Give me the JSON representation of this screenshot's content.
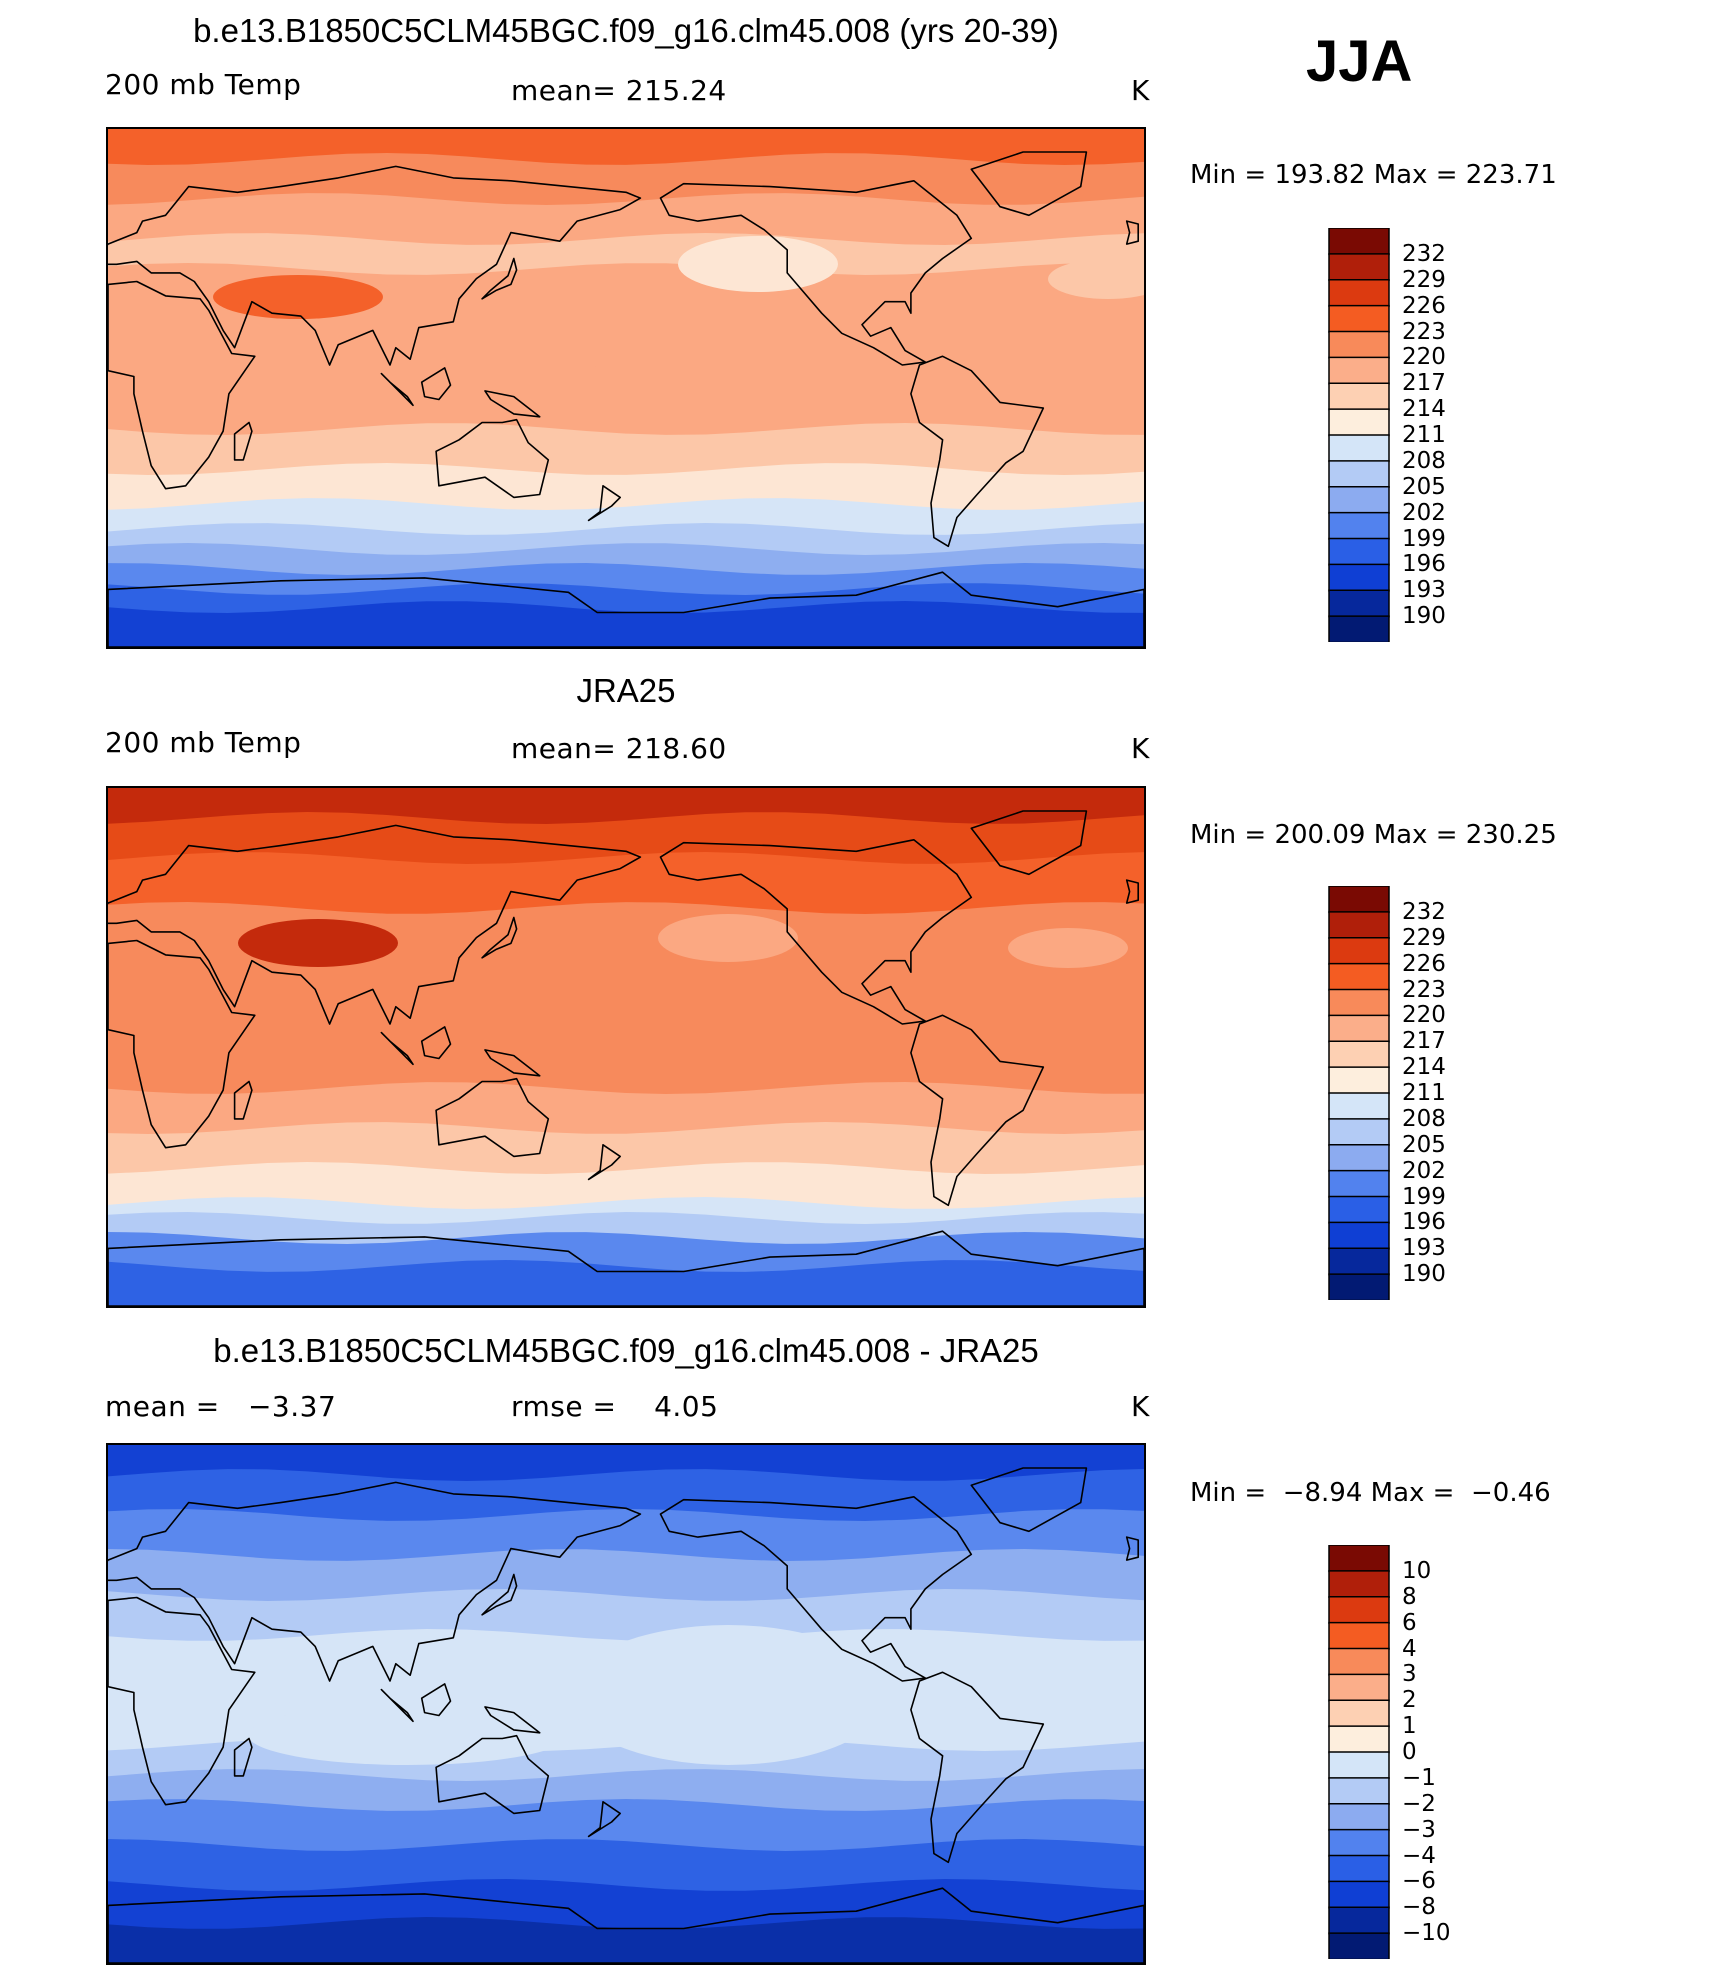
{
  "season": "JJA",
  "panels": [
    {
      "title": "b.e13.B1850C5CLM45BGC.f09_g16.clm45.008 (yrs 20-39)",
      "left_label": "200 mb Temp",
      "center_label": "mean= 215.24",
      "units": "K",
      "minmax": "Min = 193.82 Max = 223.71",
      "colorbar_levels": [
        "232",
        "229",
        "226",
        "223",
        "220",
        "217",
        "214",
        "211",
        "208",
        "205",
        "202",
        "199",
        "196",
        "193",
        "190"
      ]
    },
    {
      "title": "JRA25",
      "left_label": "200 mb Temp",
      "center_label": "mean= 218.60",
      "units": "K",
      "minmax": "Min = 200.09 Max = 230.25",
      "colorbar_levels": [
        "232",
        "229",
        "226",
        "223",
        "220",
        "217",
        "214",
        "211",
        "208",
        "205",
        "202",
        "199",
        "196",
        "193",
        "190"
      ]
    },
    {
      "title": "b.e13.B1850C5CLM45BGC.f09_g16.clm45.008 - JRA25",
      "left_label": "mean =   −3.37",
      "center_label": "rmse =    4.05",
      "units": "K",
      "minmax": "Min =  −8.94 Max =  −0.46",
      "colorbar_levels": [
        "10",
        "8",
        "6",
        "4",
        "3",
        "2",
        "1",
        "0",
        "−1",
        "−2",
        "−3",
        "−4",
        "−6",
        "−8",
        "−10"
      ]
    }
  ],
  "colorbar_colors": [
    "#7a0a03",
    "#b01f0a",
    "#dc3a10",
    "#f45c22",
    "#f88a5a",
    "#fbae8a",
    "#fdd0b3",
    "#fdeedd",
    "#d4e5f8",
    "#b3cbf5",
    "#8cabf0",
    "#5282ee",
    "#2a5fe6",
    "#0f3fd4",
    "#06289c",
    "#021a73"
  ],
  "map_palettes": {
    "model": [
      "#f4612a",
      "#f78a5c",
      "#fba882",
      "#fcc7a8",
      "#fde6d4",
      "#d6e5f7",
      "#b3cbf5",
      "#8eaef0",
      "#5a88ee",
      "#2e62e4",
      "#1341d3"
    ],
    "obs": [
      "#c42a0c",
      "#e64b17",
      "#f4612a",
      "#f78a5c",
      "#fba882",
      "#fcc7a8",
      "#fde6d4",
      "#d6e5f7",
      "#b3cbf5",
      "#5a88ee",
      "#2e62e4"
    ],
    "diff": [
      "#d6e5f7",
      "#b3cbf5",
      "#8eaef0",
      "#5a88ee",
      "#2e62e4",
      "#1341d3",
      "#0a2fa8"
    ]
  }
}
